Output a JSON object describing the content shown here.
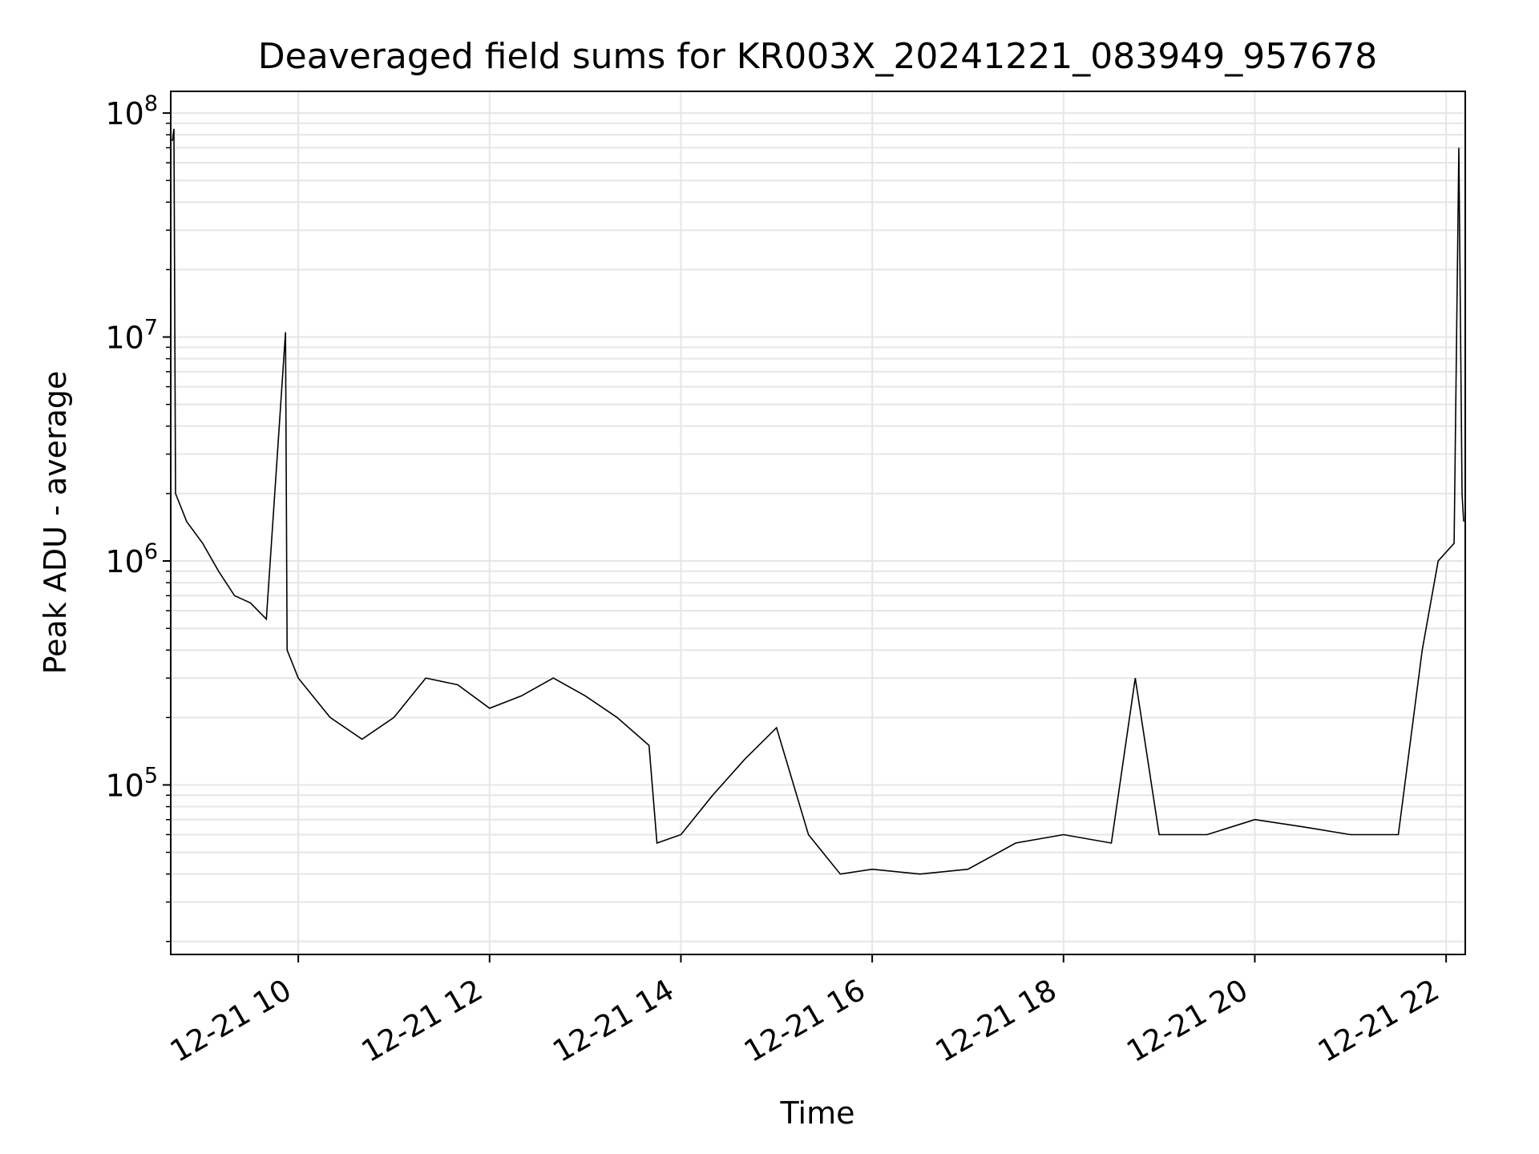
{
  "chart_data": {
    "type": "line",
    "title": "Deaveraged field sums for KR003X_20241221_083949_957678",
    "xlabel": "Time",
    "ylabel": "Peak ADU - average",
    "x_scale": "time",
    "y_scale": "log",
    "xlim": [
      "2024-12-21 08:40",
      "2024-12-21 22:12"
    ],
    "ylim": [
      17500,
      125000000
    ],
    "x_ticks": [
      {
        "t": "2024-12-21 10:00",
        "label": "12-21 10"
      },
      {
        "t": "2024-12-21 12:00",
        "label": "12-21 12"
      },
      {
        "t": "2024-12-21 14:00",
        "label": "12-21 14"
      },
      {
        "t": "2024-12-21 16:00",
        "label": "12-21 16"
      },
      {
        "t": "2024-12-21 18:00",
        "label": "12-21 18"
      },
      {
        "t": "2024-12-21 20:00",
        "label": "12-21 20"
      },
      {
        "t": "2024-12-21 22:00",
        "label": "12-21 22"
      }
    ],
    "y_ticks": [
      {
        "value": 100000,
        "base": "10",
        "exp": "5"
      },
      {
        "value": 1000000,
        "base": "10",
        "exp": "6"
      },
      {
        "value": 10000000,
        "base": "10",
        "exp": "7"
      },
      {
        "value": 100000000,
        "base": "10",
        "exp": "8"
      }
    ],
    "grid": true,
    "line_color": "#000000",
    "grid_color": "#e6e6e6",
    "series": [
      {
        "points": [
          [
            "2024-12-21 08:41",
            75000000
          ],
          [
            "2024-12-21 08:42",
            85000000
          ],
          [
            "2024-12-21 08:43",
            2000000
          ],
          [
            "2024-12-21 08:50",
            1500000
          ],
          [
            "2024-12-21 09:00",
            1200000
          ],
          [
            "2024-12-21 09:10",
            900000
          ],
          [
            "2024-12-21 09:20",
            700000
          ],
          [
            "2024-12-21 09:30",
            650000
          ],
          [
            "2024-12-21 09:40",
            550000
          ],
          [
            "2024-12-21 09:52",
            10500000
          ],
          [
            "2024-12-21 09:53",
            400000
          ],
          [
            "2024-12-21 10:00",
            300000
          ],
          [
            "2024-12-21 10:20",
            200000
          ],
          [
            "2024-12-21 10:40",
            160000
          ],
          [
            "2024-12-21 11:00",
            200000
          ],
          [
            "2024-12-21 11:20",
            300000
          ],
          [
            "2024-12-21 11:40",
            280000
          ],
          [
            "2024-12-21 12:00",
            220000
          ],
          [
            "2024-12-21 12:20",
            250000
          ],
          [
            "2024-12-21 12:40",
            300000
          ],
          [
            "2024-12-21 13:00",
            250000
          ],
          [
            "2024-12-21 13:20",
            200000
          ],
          [
            "2024-12-21 13:40",
            150000
          ],
          [
            "2024-12-21 13:45",
            55000
          ],
          [
            "2024-12-21 14:00",
            60000
          ],
          [
            "2024-12-21 14:20",
            90000
          ],
          [
            "2024-12-21 14:40",
            130000
          ],
          [
            "2024-12-21 15:00",
            180000
          ],
          [
            "2024-12-21 15:20",
            60000
          ],
          [
            "2024-12-21 15:40",
            40000
          ],
          [
            "2024-12-21 16:00",
            42000
          ],
          [
            "2024-12-21 16:30",
            40000
          ],
          [
            "2024-12-21 17:00",
            42000
          ],
          [
            "2024-12-21 17:30",
            55000
          ],
          [
            "2024-12-21 18:00",
            60000
          ],
          [
            "2024-12-21 18:30",
            55000
          ],
          [
            "2024-12-21 18:45",
            300000
          ],
          [
            "2024-12-21 19:00",
            60000
          ],
          [
            "2024-12-21 19:30",
            60000
          ],
          [
            "2024-12-21 20:00",
            70000
          ],
          [
            "2024-12-21 20:30",
            65000
          ],
          [
            "2024-12-21 21:00",
            60000
          ],
          [
            "2024-12-21 21:30",
            60000
          ],
          [
            "2024-12-21 21:45",
            400000
          ],
          [
            "2024-12-21 21:55",
            1000000
          ],
          [
            "2024-12-21 22:05",
            1200000
          ],
          [
            "2024-12-21 22:08",
            70000000
          ],
          [
            "2024-12-21 22:10",
            2000000
          ],
          [
            "2024-12-21 22:11",
            1500000
          ]
        ]
      }
    ]
  }
}
